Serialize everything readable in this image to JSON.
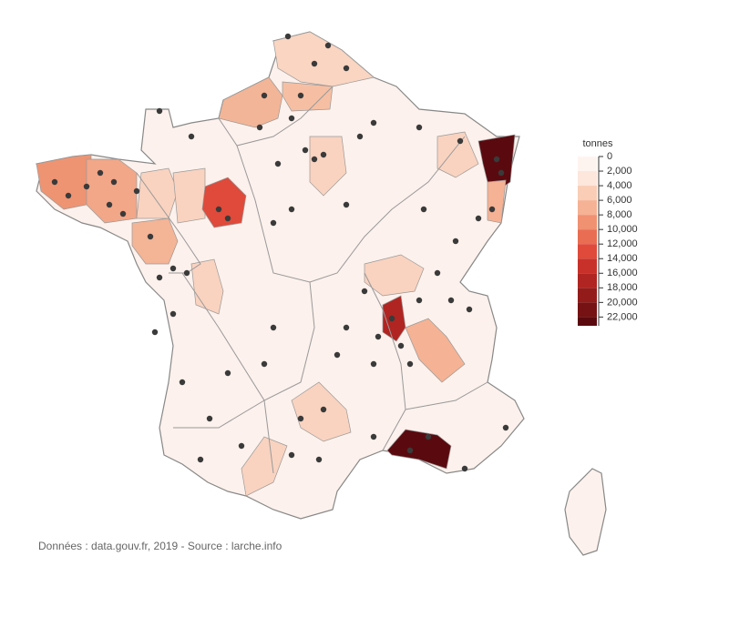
{
  "legend": {
    "title": "tonnes",
    "ticks": [
      0,
      {
        "value": 2000,
        "label": "2,000"
      },
      {
        "value": 4000,
        "label": "4,000"
      },
      {
        "value": 6000,
        "label": "6,000"
      },
      {
        "value": 8000,
        "label": "8,000"
      },
      {
        "value": 10000,
        "label": "10,000"
      },
      {
        "value": 12000,
        "label": "12,000"
      },
      {
        "value": 14000,
        "label": "14,000"
      },
      {
        "value": 16000,
        "label": "16,000"
      },
      {
        "value": 18000,
        "label": "18,000"
      },
      {
        "value": 20000,
        "label": "20,000"
      },
      {
        "value": 22000,
        "label": "22,000"
      }
    ],
    "lim": [
      0,
      23200
    ],
    "colors": [
      "#fef4ef",
      "#fde6dc",
      "#f9cdb6",
      "#f5b294",
      "#f09171",
      "#e96d52",
      "#df4a3a",
      "#c8312a",
      "#b02521",
      "#931c1a",
      "#761214",
      "#5a0a0f"
    ]
  },
  "source": "Données : data.gouv.fr, 2019 - Source : larche.info"
}
